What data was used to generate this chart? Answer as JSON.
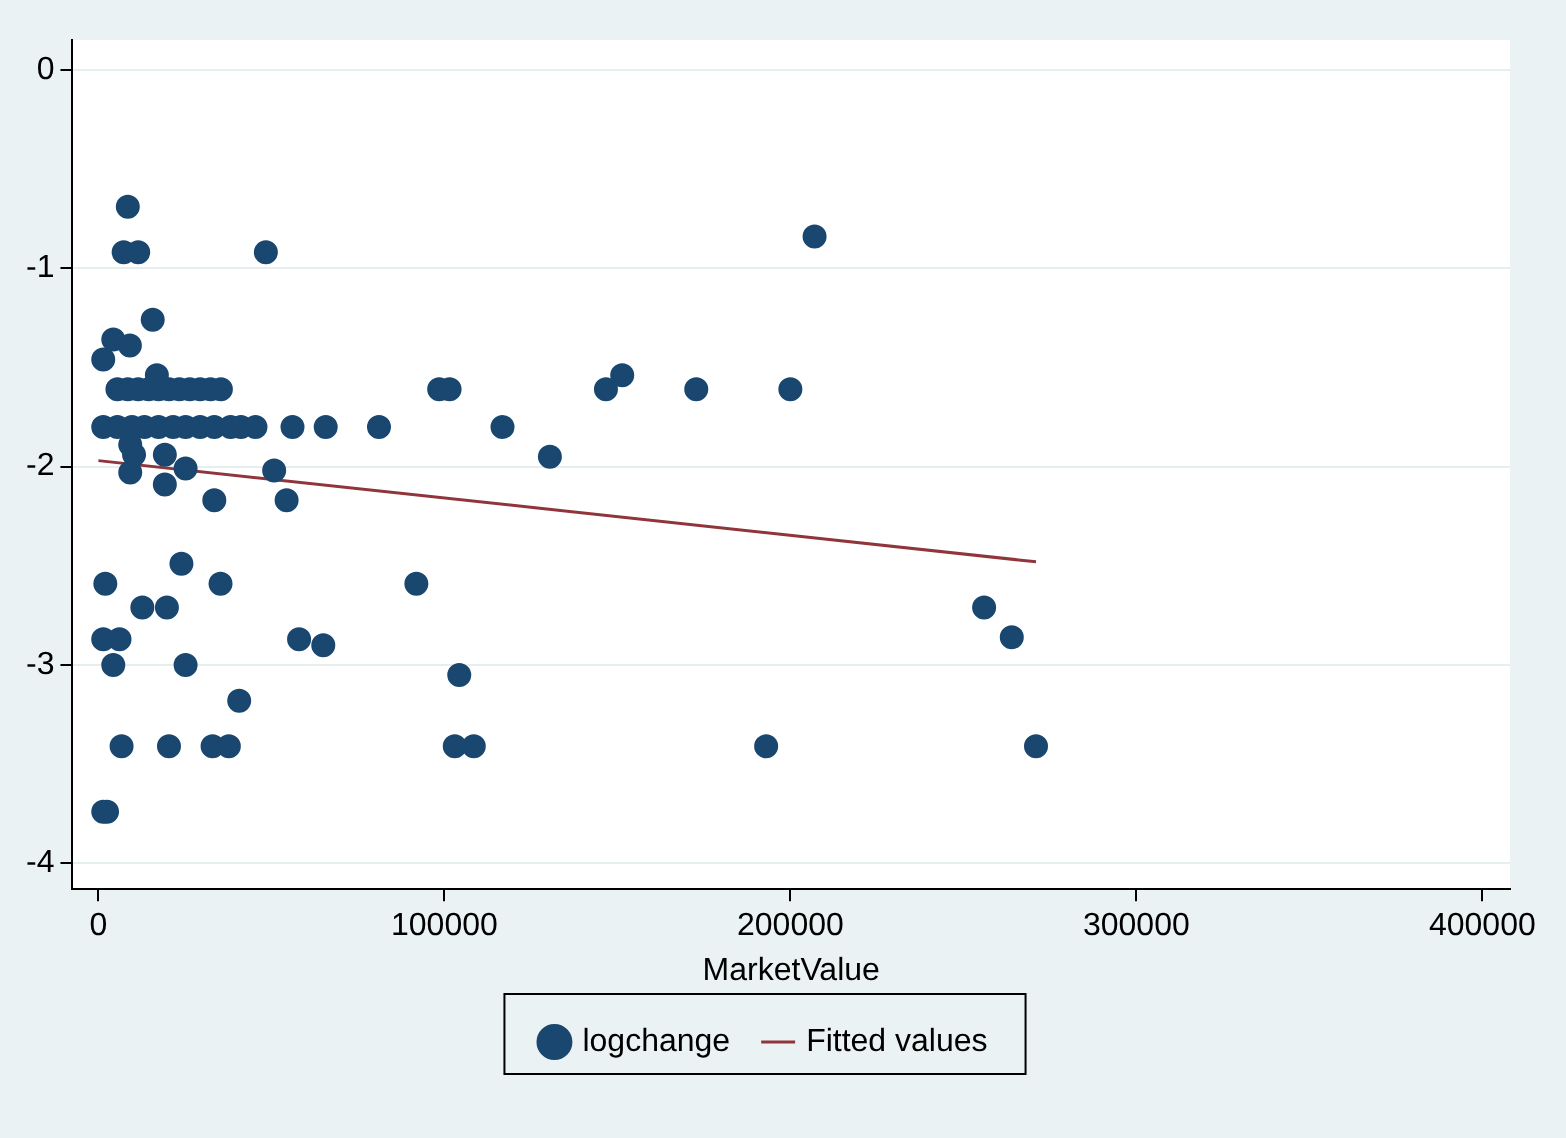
{
  "chart_data": {
    "type": "scatter",
    "xlabel": "MarketValue",
    "xlim": [
      -7500,
      408000
    ],
    "xticks": [
      0,
      100000,
      200000,
      300000,
      400000
    ],
    "ylim": [
      -4.13,
      0.15
    ],
    "yticks": [
      0,
      -1,
      -2,
      -3,
      -4
    ],
    "grid": "y",
    "legend": "bottom",
    "marker": "circle",
    "series": [
      {
        "name": "logchange",
        "color": "#1a476f",
        "x": [
          8500,
          7300,
          11500,
          48400,
          207000,
          15700,
          4300,
          1400,
          9100,
          16900,
          5500,
          8500,
          11500,
          14500,
          17400,
          20400,
          23400,
          26400,
          29400,
          32400,
          35400,
          98500,
          101500,
          146700,
          151400,
          172800,
          200000,
          1400,
          5500,
          9700,
          13300,
          17400,
          21600,
          25200,
          29400,
          33500,
          38200,
          41200,
          45400,
          56100,
          65700,
          81100,
          116800,
          9200,
          10300,
          9200,
          19200,
          25200,
          19200,
          33500,
          50800,
          54400,
          130500,
          91900,
          256000,
          264000,
          271000,
          193000,
          104300,
          103000,
          108500,
          2000,
          24000,
          35300,
          12700,
          19800,
          1400,
          6100,
          58000,
          65000,
          4300,
          25200,
          40700,
          6700,
          20400,
          33000,
          37700,
          1400,
          2500
        ],
        "values": [
          -0.69,
          -0.92,
          -0.92,
          -0.92,
          -0.84,
          -1.26,
          -1.36,
          -1.46,
          -1.39,
          -1.54,
          -1.61,
          -1.61,
          -1.61,
          -1.61,
          -1.61,
          -1.61,
          -1.61,
          -1.61,
          -1.61,
          -1.61,
          -1.61,
          -1.61,
          -1.61,
          -1.61,
          -1.54,
          -1.61,
          -1.61,
          -1.8,
          -1.8,
          -1.8,
          -1.8,
          -1.8,
          -1.8,
          -1.8,
          -1.8,
          -1.8,
          -1.8,
          -1.8,
          -1.8,
          -1.8,
          -1.8,
          -1.8,
          -1.8,
          -1.89,
          -1.94,
          -2.03,
          -1.94,
          -2.01,
          -2.09,
          -2.17,
          -2.02,
          -2.17,
          -1.95,
          -2.59,
          -2.71,
          -2.86,
          -3.41,
          -3.41,
          -3.05,
          -3.41,
          -3.41,
          -2.59,
          -2.49,
          -2.59,
          -2.71,
          -2.71,
          -2.87,
          -2.87,
          -2.87,
          -2.9,
          -3.0,
          -3.0,
          -3.18,
          -3.41,
          -3.41,
          -3.41,
          -3.41,
          -3.74,
          -3.74
        ]
      },
      {
        "name": "Fitted values",
        "color": "#90353b",
        "type": "line",
        "marker": "none",
        "x": [
          0,
          271000
        ],
        "values": [
          -1.97,
          -2.48
        ]
      }
    ]
  }
}
